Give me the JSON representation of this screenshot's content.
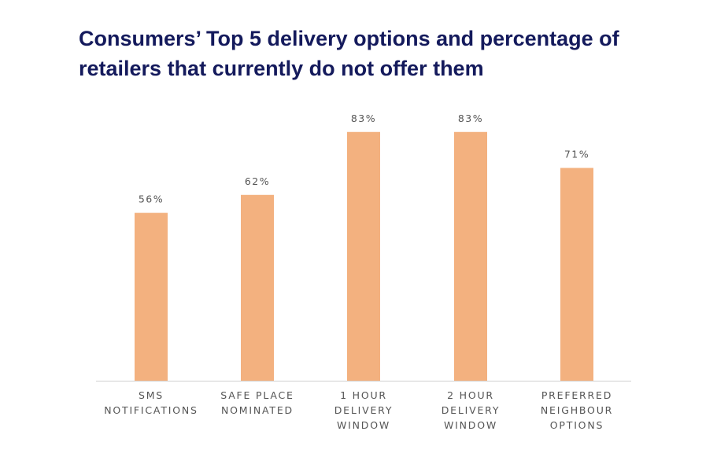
{
  "title_lines": [
    "Consumers’ Top 5 delivery options and percentage of",
    "retailers that currently do not offer them"
  ],
  "colors": {
    "bar": "#f3b17f",
    "title": "#141a5c",
    "axis": "#d0d0d0",
    "label": "#555555"
  },
  "chart_data": {
    "type": "bar",
    "title": "Consumers’ Top 5 delivery options and percentage of retailers that currently do not offer them",
    "categories": [
      [
        "SMS",
        "NOTIFICATIONS"
      ],
      [
        "SAFE PLACE",
        "NOMINATED"
      ],
      [
        "1 HOUR",
        "DELIVERY",
        "WINDOW"
      ],
      [
        "2 HOUR",
        "DELIVERY",
        "WINDOW"
      ],
      [
        "PREFERRED",
        "NEIGHBOUR",
        "OPTIONS"
      ]
    ],
    "values": [
      56,
      62,
      83,
      83,
      71
    ],
    "data_labels": [
      "56%",
      "62%",
      "83%",
      "83%",
      "71%"
    ],
    "ylim": [
      0,
      100
    ],
    "grid": false,
    "legend": "none"
  }
}
